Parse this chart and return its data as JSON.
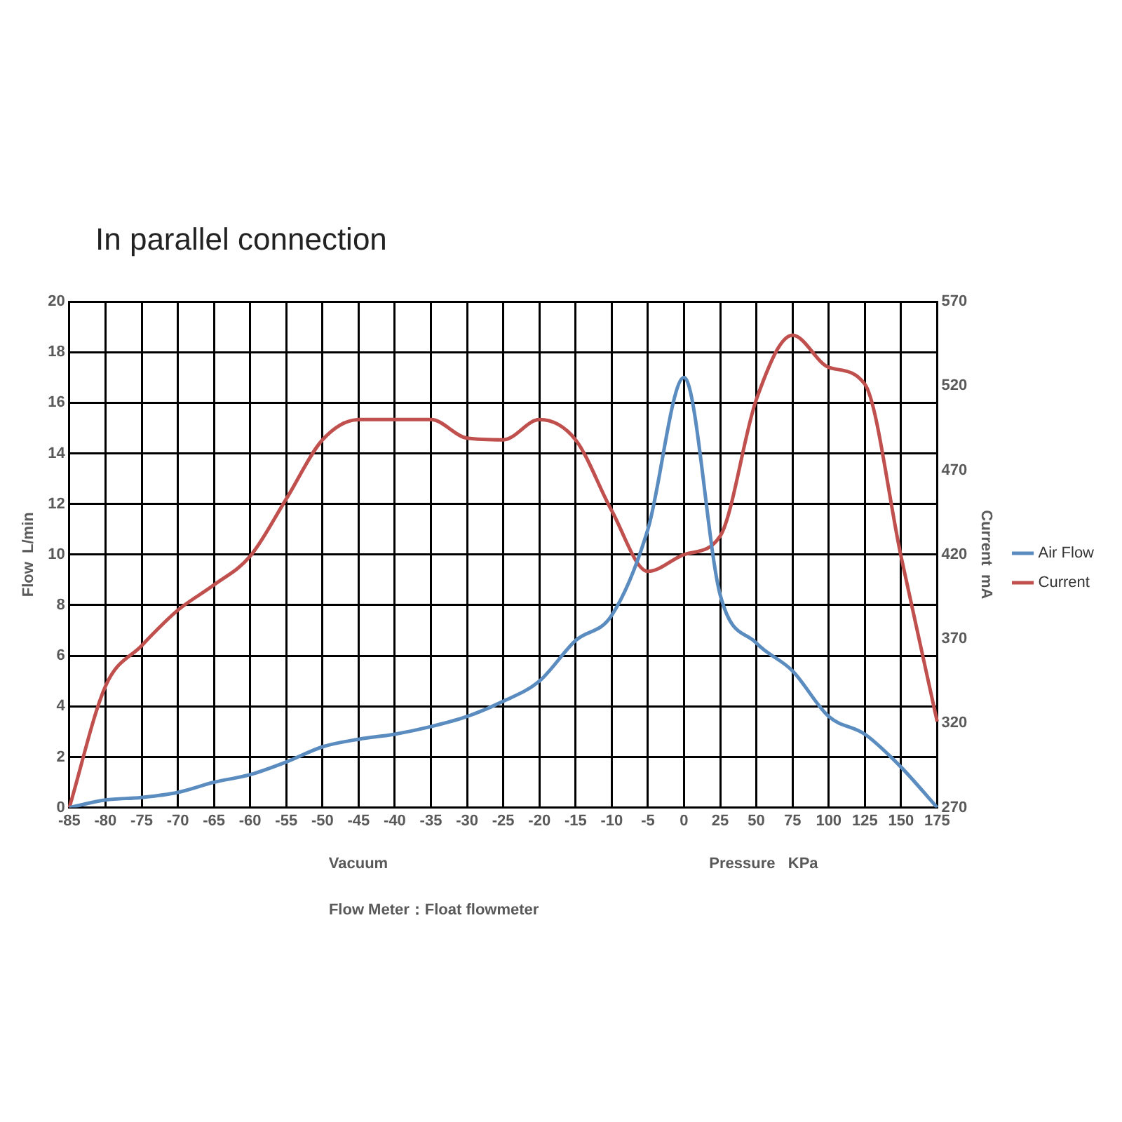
{
  "chart_data": {
    "type": "line",
    "title": "In parallel connection",
    "xlabel": null,
    "ylabel": "Flow  L/min",
    "y2label": "Current  mA",
    "categories": [
      "-85",
      "-80",
      "-75",
      "-70",
      "-65",
      "-60",
      "-55",
      "-50",
      "-45",
      "-40",
      "-35",
      "-30",
      "-25",
      "-20",
      "-15",
      "-10",
      "-5",
      "0",
      "25",
      "50",
      "75",
      "100",
      "125",
      "150",
      "175"
    ],
    "series": [
      {
        "name": "Air Flow",
        "color": "#5b8cc0",
        "values": [
          0,
          0.3,
          0.4,
          0.6,
          1.0,
          1.3,
          1.8,
          2.4,
          2.7,
          2.9,
          3.2,
          3.6,
          4.2,
          5.0,
          6.6,
          7.6,
          11,
          17,
          8.4,
          6.5,
          5.4,
          3.6,
          2.9,
          1.6,
          0
        ]
      },
      {
        "name": "Current",
        "color": "#c0504d",
        "axis": "y2",
        "values": [
          270,
          342,
          366,
          387,
          402,
          419,
          453,
          488,
          500,
          500,
          500,
          489,
          488,
          500,
          488,
          446,
          410,
          420,
          431,
          512,
          550,
          531,
          521,
          419,
          321
        ]
      }
    ],
    "ylim": [
      0,
      20
    ],
    "yticks": [
      0,
      2,
      4,
      6,
      8,
      10,
      12,
      14,
      16,
      18,
      20
    ],
    "y2lim": [
      270,
      570
    ],
    "y2ticks": [
      270,
      320,
      370,
      420,
      470,
      520,
      570
    ],
    "grid": true,
    "legend": "right",
    "marker": "none",
    "line_style": "solid",
    "annotations": [
      "Vacuum",
      "Pressure   KPa",
      "Flow Meter：Float flowmeter"
    ]
  }
}
